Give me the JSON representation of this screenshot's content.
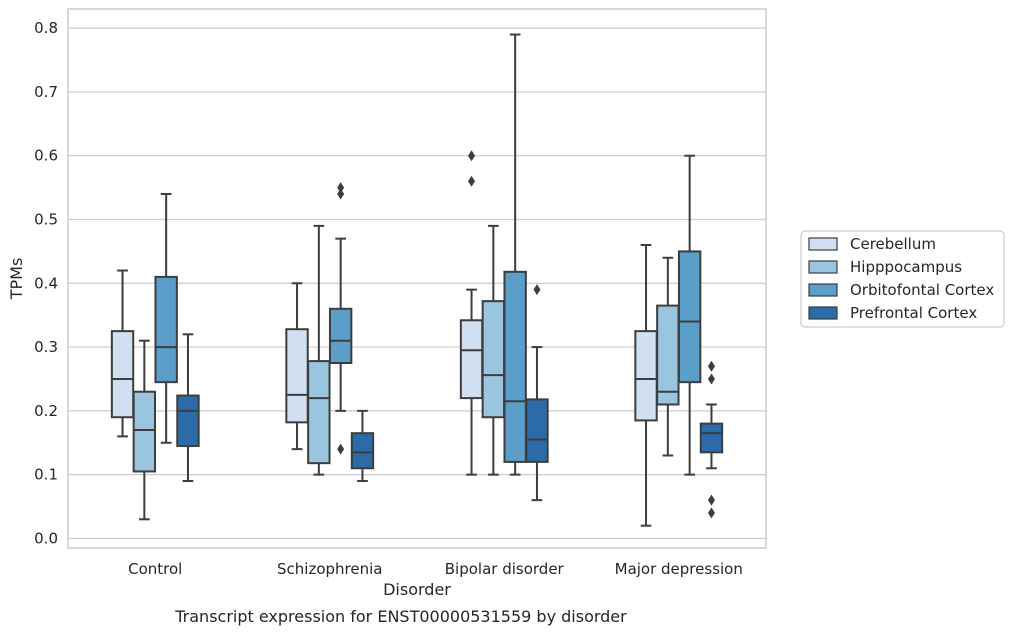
{
  "chart_data": {
    "type": "box",
    "caption": "Transcript expression for ENST00000531559 by disorder",
    "xlabel": "Disorder",
    "ylabel": "TPMs",
    "ylim": [
      -0.015,
      0.83
    ],
    "yticks": [
      "0.0",
      "0.1",
      "0.2",
      "0.3",
      "0.4",
      "0.5",
      "0.6",
      "0.7",
      "0.8"
    ],
    "grid": true,
    "legend_position": "right",
    "categories": [
      "Control",
      "Schizophrenia",
      "Bipolar disorder",
      "Major depression"
    ],
    "series": [
      {
        "name": "Cerebellum",
        "color": "#d0e0f0",
        "boxes": [
          {
            "whisker_low": 0.16,
            "q1": 0.19,
            "median": 0.25,
            "q3": 0.325,
            "whisker_high": 0.42,
            "outliers": []
          },
          {
            "whisker_low": 0.14,
            "q1": 0.182,
            "median": 0.225,
            "q3": 0.328,
            "whisker_high": 0.4,
            "outliers": []
          },
          {
            "whisker_low": 0.1,
            "q1": 0.22,
            "median": 0.295,
            "q3": 0.342,
            "whisker_high": 0.39,
            "outliers": [
              0.6,
              0.56
            ]
          },
          {
            "whisker_low": 0.02,
            "q1": 0.185,
            "median": 0.25,
            "q3": 0.325,
            "whisker_high": 0.46,
            "outliers": []
          }
        ]
      },
      {
        "name": "Hipppocampus",
        "color": "#9ac5de",
        "boxes": [
          {
            "whisker_low": 0.03,
            "q1": 0.105,
            "median": 0.17,
            "q3": 0.23,
            "whisker_high": 0.31,
            "outliers": []
          },
          {
            "whisker_low": 0.1,
            "q1": 0.118,
            "median": 0.22,
            "q3": 0.278,
            "whisker_high": 0.49,
            "outliers": []
          },
          {
            "whisker_low": 0.1,
            "q1": 0.19,
            "median": 0.256,
            "q3": 0.372,
            "whisker_high": 0.49,
            "outliers": []
          },
          {
            "whisker_low": 0.13,
            "q1": 0.21,
            "median": 0.23,
            "q3": 0.365,
            "whisker_high": 0.44,
            "outliers": []
          }
        ]
      },
      {
        "name": "Orbitofontal Cortex",
        "color": "#5a9ec9",
        "boxes": [
          {
            "whisker_low": 0.15,
            "q1": 0.245,
            "median": 0.3,
            "q3": 0.41,
            "whisker_high": 0.54,
            "outliers": []
          },
          {
            "whisker_low": 0.2,
            "q1": 0.275,
            "median": 0.31,
            "q3": 0.36,
            "whisker_high": 0.47,
            "outliers": [
              0.55,
              0.54,
              0.14
            ]
          },
          {
            "whisker_low": 0.1,
            "q1": 0.12,
            "median": 0.215,
            "q3": 0.418,
            "whisker_high": 0.79,
            "outliers": []
          },
          {
            "whisker_low": 0.1,
            "q1": 0.245,
            "median": 0.34,
            "q3": 0.45,
            "whisker_high": 0.6,
            "outliers": []
          }
        ]
      },
      {
        "name": "Prefrontal Cortex",
        "color": "#2b6ba8",
        "boxes": [
          {
            "whisker_low": 0.09,
            "q1": 0.145,
            "median": 0.2,
            "q3": 0.224,
            "whisker_high": 0.32,
            "outliers": []
          },
          {
            "whisker_low": 0.09,
            "q1": 0.11,
            "median": 0.135,
            "q3": 0.165,
            "whisker_high": 0.2,
            "outliers": []
          },
          {
            "whisker_low": 0.06,
            "q1": 0.12,
            "median": 0.155,
            "q3": 0.218,
            "whisker_high": 0.3,
            "outliers": [
              0.39
            ]
          },
          {
            "whisker_low": 0.11,
            "q1": 0.135,
            "median": 0.165,
            "q3": 0.18,
            "whisker_high": 0.21,
            "outliers": [
              0.27,
              0.25,
              0.06,
              0.04
            ]
          }
        ]
      }
    ]
  }
}
